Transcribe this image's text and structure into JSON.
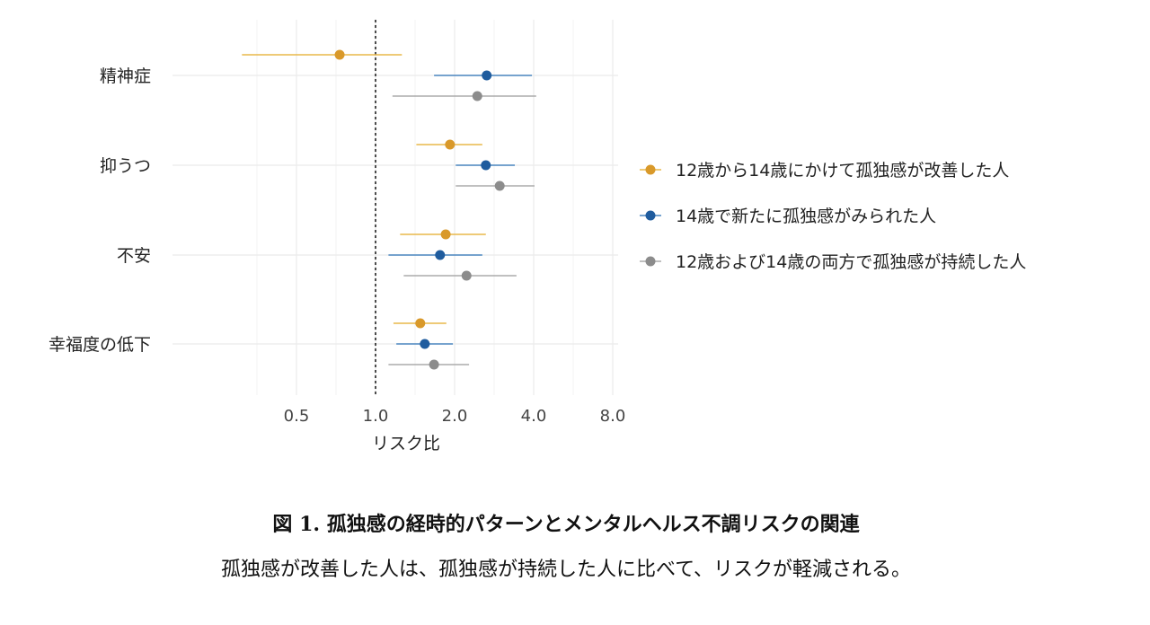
{
  "chart_data": {
    "type": "forest",
    "xscale": "log2",
    "xlabel": "リスク比",
    "xlim": [
      0.25,
      8.4
    ],
    "xticks": [
      0.5,
      1.0,
      2.0,
      4.0,
      8.0
    ],
    "xtick_labels": [
      "0.5",
      "1.0",
      "2.0",
      "4.0",
      "8.0"
    ],
    "reference_line": 1.0,
    "grid": true,
    "legend_position": "right",
    "categories": [
      "精神症",
      "抑うつ",
      "不安",
      "幸福度の低下"
    ],
    "series": [
      {
        "name": "12歳から14歳にかけて孤独感が改善した人",
        "color": "#D9992A",
        "line_color": "#E8B84A",
        "estimate": [
          0.73,
          1.92,
          1.85,
          1.48
        ],
        "lower": [
          0.31,
          1.43,
          1.24,
          1.17
        ],
        "upper": [
          1.26,
          2.55,
          2.63,
          1.86
        ]
      },
      {
        "name": "14歳で新たに孤独感がみられた人",
        "color": "#1F5C9E",
        "line_color": "#4A86C0",
        "estimate": [
          2.65,
          2.63,
          1.76,
          1.54
        ],
        "lower": [
          1.67,
          2.02,
          1.12,
          1.2
        ],
        "upper": [
          3.94,
          3.39,
          2.55,
          1.97
        ]
      },
      {
        "name": "12歳および14歳の両方で孤独感が持続した人",
        "color": "#8C8C8C",
        "line_color": "#ABABAB",
        "estimate": [
          2.44,
          2.97,
          2.22,
          1.67
        ],
        "lower": [
          1.16,
          2.02,
          1.28,
          1.12
        ],
        "upper": [
          4.09,
          4.03,
          3.44,
          2.27
        ]
      }
    ]
  },
  "caption": {
    "title": "図 1. 孤独感の経時的パターンとメンタルヘルス不調リスクの関連",
    "subtitle": "孤独感が改善した人は、孤独感が持続した人に比べて、リスクが軽減される。"
  }
}
